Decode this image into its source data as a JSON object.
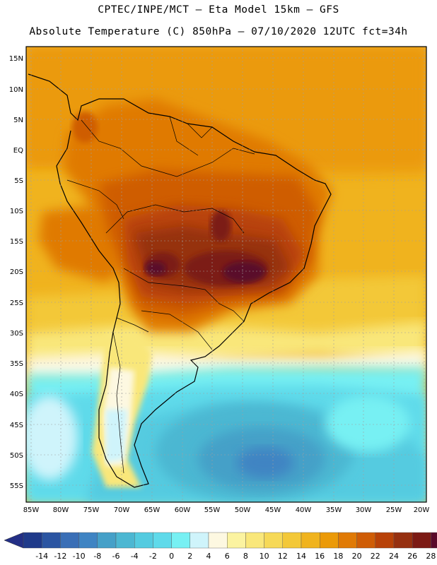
{
  "title": {
    "line1": "CPTEC/INPE/MCT –  Eta Model 15km – GFS",
    "line2": "Absolute Temperature (C) 850hPa – 07/10/2020 12UTC fct=34h"
  },
  "map": {
    "lat_labels": [
      "15N",
      "10N",
      "5N",
      "EQ",
      "5S",
      "10S",
      "15S",
      "20S",
      "25S",
      "30S",
      "35S",
      "40S",
      "45S",
      "50S",
      "55S"
    ],
    "lon_labels": [
      "85W",
      "80W",
      "75W",
      "70W",
      "65W",
      "60W",
      "55W",
      "50W",
      "45W",
      "40W",
      "35W",
      "30W",
      "25W",
      "20W"
    ]
  },
  "colorbar": {
    "labels": [
      "-14",
      "-12",
      "-10",
      "-8",
      "-6",
      "-4",
      "-2",
      "0",
      "2",
      "4",
      "6",
      "8",
      "10",
      "12",
      "14",
      "16",
      "18",
      "20",
      "22",
      "24",
      "26",
      "28"
    ],
    "colors": [
      "#1f3a8a",
      "#2b55a2",
      "#3a6fb6",
      "#3f84c3",
      "#45a0c8",
      "#4cb7d2",
      "#54cbe0",
      "#5fdaea",
      "#77f0f3",
      "#cff4fb",
      "#fdf8e1",
      "#fbf3a0",
      "#f9e77a",
      "#f6d957",
      "#f3c838",
      "#f0b31e",
      "#eb9a08",
      "#e07a05",
      "#cf5d06",
      "#b84208",
      "#963010",
      "#7c1a14",
      "#5a0a2a"
    ],
    "arrow_low_color": "#232f86",
    "arrow_high_color": "#6a0d2e"
  }
}
